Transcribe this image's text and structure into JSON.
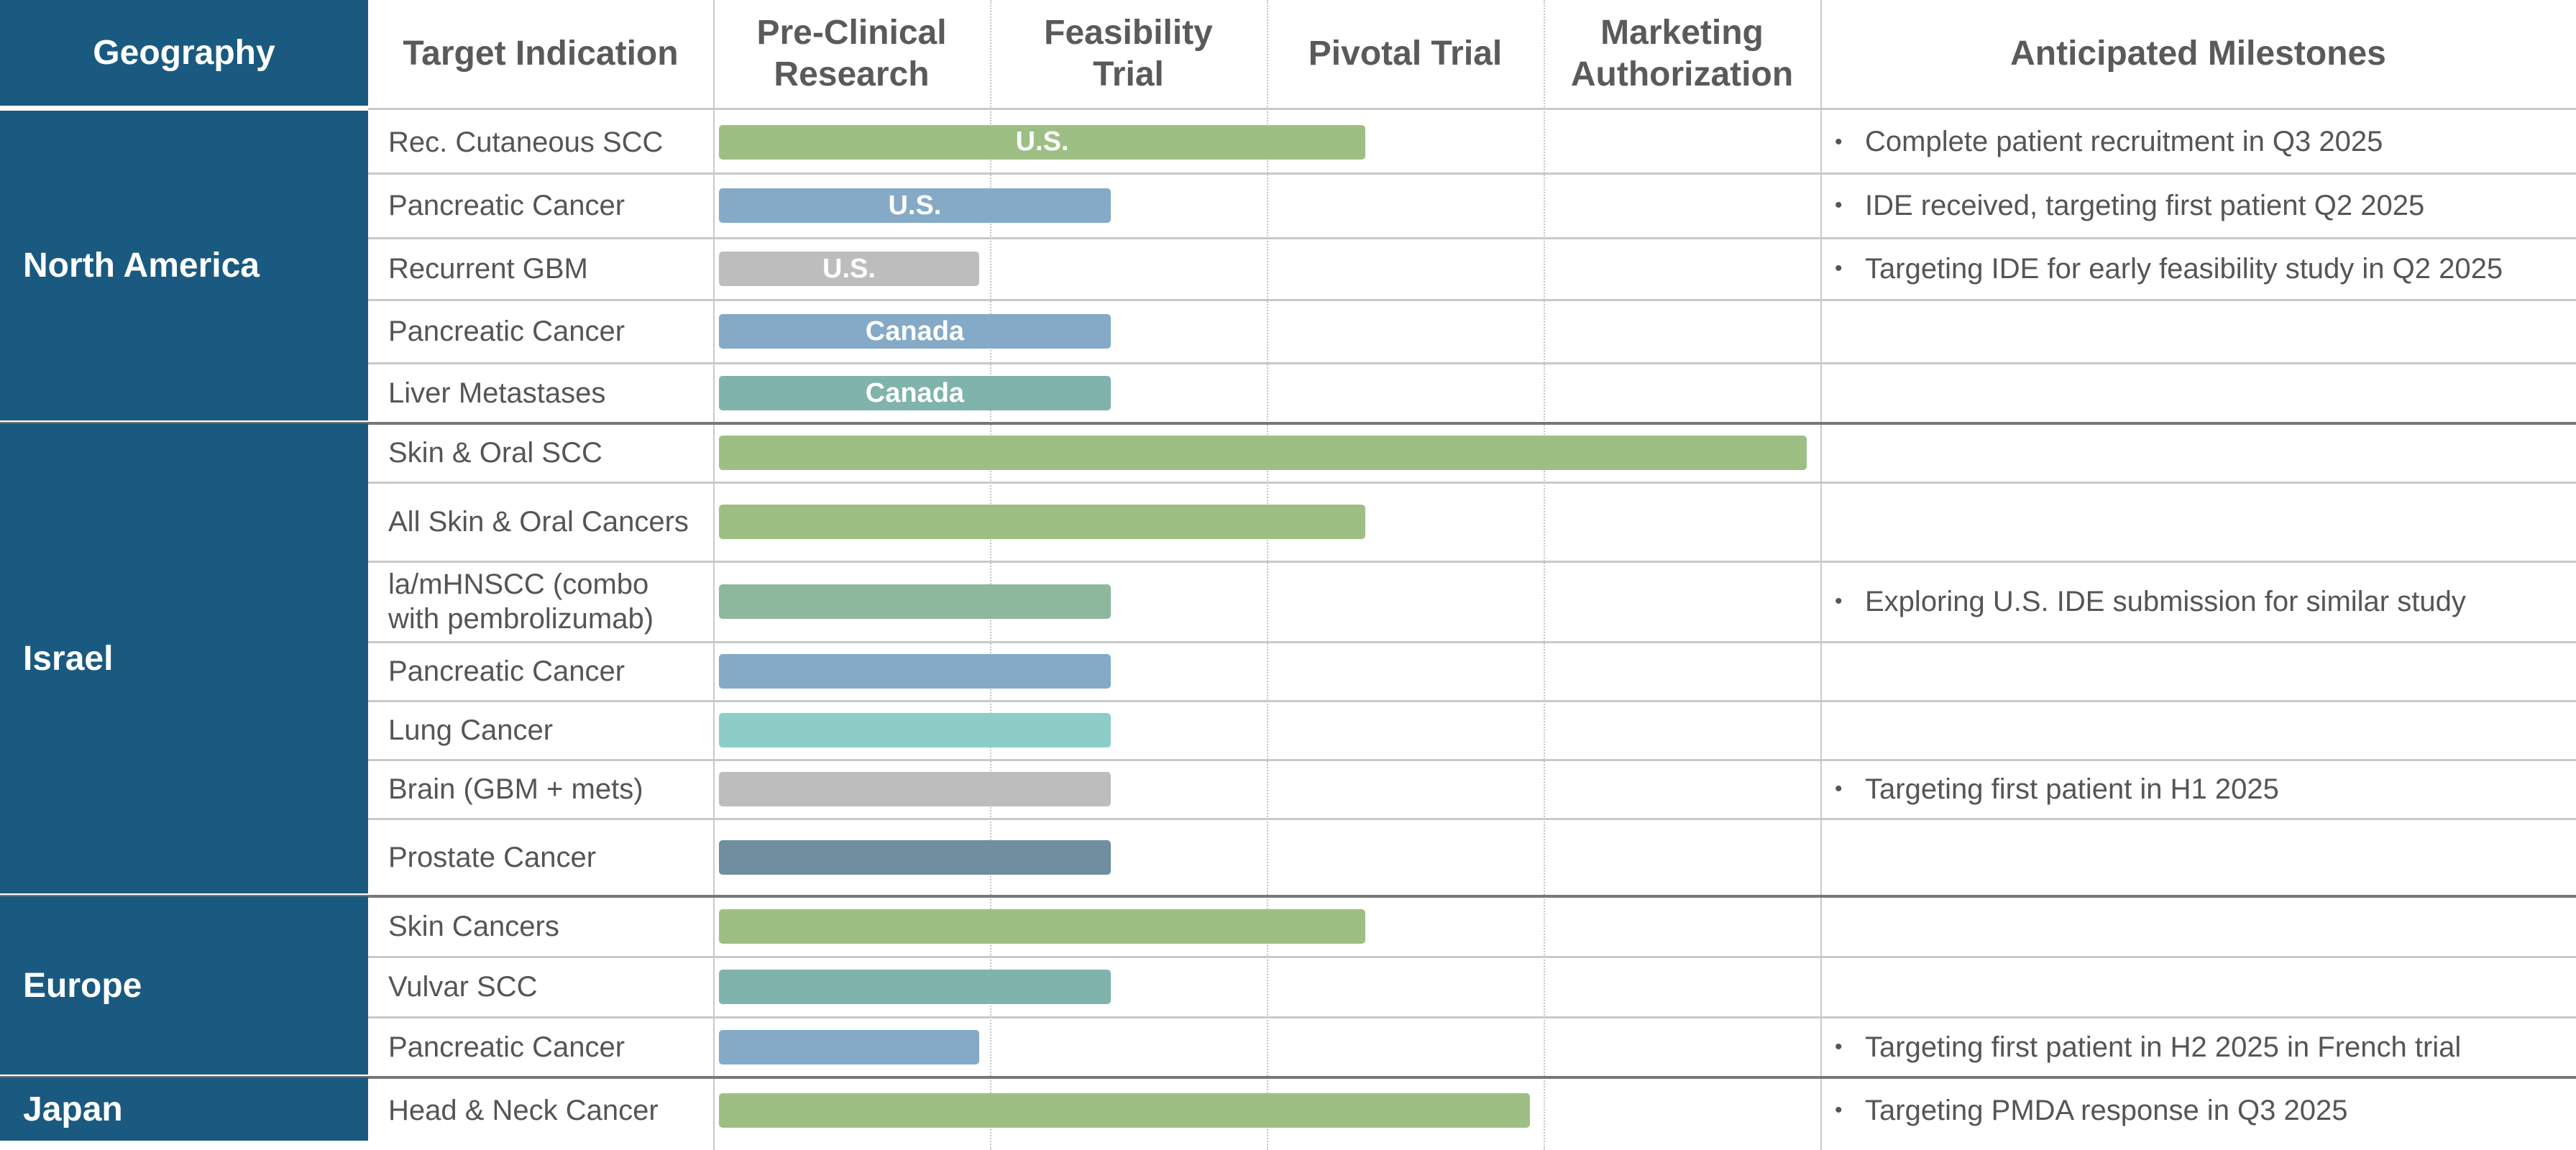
{
  "headers": {
    "geography": "Geography",
    "target_indication": "Target Indication",
    "stages": [
      [
        "Pre-Clinical",
        "Research"
      ],
      [
        "Feasibility",
        "Trial"
      ],
      [
        "Pivotal Trial"
      ],
      [
        "Marketing",
        "Authorization"
      ]
    ],
    "milestones": "Anticipated Milestones"
  },
  "colors": {
    "header_bg": "#1a5a80",
    "green": "#9dbf84",
    "blue": "#84aac7",
    "gray": "#bdbdbd",
    "teal": "#80b3ac",
    "sage": "#8db89d",
    "light_teal": "#8ccec7",
    "slate": "#6f8ea0"
  },
  "chart_data": {
    "type": "bar",
    "orientation": "horizontal",
    "x_axis": {
      "categories": [
        "Pre-Clinical Research",
        "Feasibility Trial",
        "Pivotal Trial",
        "Marketing Authorization"
      ],
      "range": [
        0,
        4
      ],
      "unit": "stage progress"
    },
    "groups": [
      {
        "geography": "North America",
        "rows": [
          {
            "indication": "Rec. Cutaneous SCC",
            "progress": 2.36,
            "label": "U.S.",
            "color": "green",
            "milestone": "Complete patient recruitment in Q3 2025"
          },
          {
            "indication": "Pancreatic Cancer",
            "progress": 1.43,
            "label": "U.S.",
            "color": "blue",
            "milestone": "IDE received, targeting first patient Q2 2025"
          },
          {
            "indication": "Recurrent GBM",
            "progress": 0.95,
            "label": "U.S.",
            "color": "gray",
            "milestone": "Targeting IDE for early feasibility study in Q2 2025"
          },
          {
            "indication": "Pancreatic Cancer",
            "progress": 1.43,
            "label": "Canada",
            "color": "blue",
            "milestone": ""
          },
          {
            "indication": "Liver Metastases",
            "progress": 1.43,
            "label": "Canada",
            "color": "teal",
            "milestone": ""
          }
        ]
      },
      {
        "geography": "Israel",
        "rows": [
          {
            "indication": "Skin & Oral SCC",
            "progress": 3.97,
            "label": "",
            "color": "green",
            "milestone": ""
          },
          {
            "indication": "All Skin & Oral Cancers",
            "progress": 2.36,
            "label": "",
            "color": "green",
            "milestone": ""
          },
          {
            "indication": "la/mHNSCC (combo with pembrolizumab)",
            "progress": 1.43,
            "label": "",
            "color": "sage",
            "milestone": "Exploring U.S. IDE submission for similar study"
          },
          {
            "indication": "Pancreatic Cancer",
            "progress": 1.43,
            "label": "",
            "color": "blue",
            "milestone": ""
          },
          {
            "indication": "Lung Cancer",
            "progress": 1.43,
            "label": "",
            "color": "light_teal",
            "milestone": ""
          },
          {
            "indication": "Brain (GBM + mets)",
            "progress": 1.43,
            "label": "",
            "color": "gray",
            "milestone": "Targeting first patient in H1 2025"
          },
          {
            "indication": "Prostate Cancer",
            "progress": 1.43,
            "label": "",
            "color": "slate",
            "milestone": ""
          }
        ]
      },
      {
        "geography": "Europe",
        "rows": [
          {
            "indication": "Skin Cancers",
            "progress": 2.36,
            "label": "",
            "color": "green",
            "milestone": ""
          },
          {
            "indication": "Vulvar SCC",
            "progress": 1.43,
            "label": "",
            "color": "teal",
            "milestone": ""
          },
          {
            "indication": "Pancreatic Cancer",
            "progress": 0.95,
            "label": "",
            "color": "blue",
            "milestone": "Targeting first patient in H2 2025 in French trial"
          }
        ]
      },
      {
        "geography": "Japan",
        "rows": [
          {
            "indication": "Head & Neck Cancer",
            "progress": 2.96,
            "label": "",
            "color": "green",
            "milestone": "Targeting PMDA response in Q3 2025"
          }
        ]
      }
    ]
  }
}
